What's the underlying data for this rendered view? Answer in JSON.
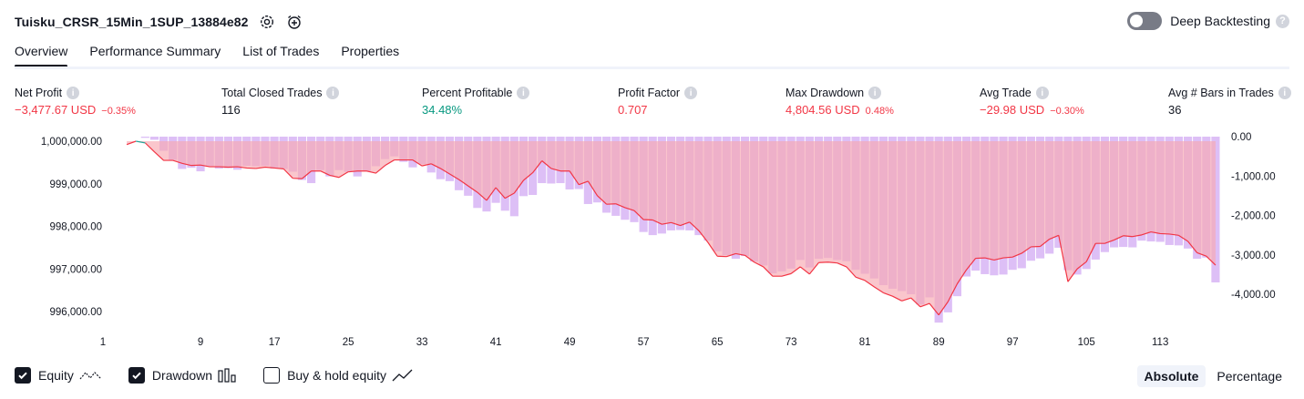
{
  "header": {
    "strategy_name": "Tuisku_CRSR_15Min_1SUP_13884e82",
    "settings_icon": "gear-icon",
    "alert_icon": "add-alarm-icon"
  },
  "deep_backtesting": {
    "label": "Deep Backtesting",
    "enabled": false,
    "help": "?"
  },
  "tabs": [
    {
      "label": "Overview",
      "active": true
    },
    {
      "label": "Performance Summary",
      "active": false
    },
    {
      "label": "List of Trades",
      "active": false
    },
    {
      "label": "Properties",
      "active": false
    }
  ],
  "metrics": {
    "net_profit": {
      "label": "Net Profit",
      "value": "−3,477.67 USD",
      "sub": "−0.35%"
    },
    "total_closed_trades": {
      "label": "Total Closed Trades",
      "value": "116"
    },
    "percent_profitable": {
      "label": "Percent Profitable",
      "value": "34.48%"
    },
    "profit_factor": {
      "label": "Profit Factor",
      "value": "0.707"
    },
    "max_drawdown": {
      "label": "Max Drawdown",
      "value": "4,804.56 USD",
      "sub": "0.48%"
    },
    "avg_trade": {
      "label": "Avg Trade",
      "value": "−29.98 USD",
      "sub": "−0.30%"
    },
    "avg_bars": {
      "label": "Avg # Bars in Trades",
      "value": "36"
    }
  },
  "chart_data": {
    "type": "area",
    "x_ticks": [
      1,
      9,
      17,
      25,
      33,
      41,
      49,
      57,
      65,
      73,
      81,
      89,
      97,
      105,
      113
    ],
    "left_axis": {
      "ticks": [
        "1,000,000.00",
        "999,000.00",
        "998,000.00",
        "997,000.00",
        "996,000.00"
      ],
      "values": [
        1000000,
        999000,
        998000,
        997000,
        996000
      ],
      "range": [
        995400,
        1000100
      ]
    },
    "right_axis": {
      "ticks": [
        "0.00",
        "-1,000.00",
        "-2,000.00",
        "-3,000.00",
        "-4,000.00"
      ],
      "values": [
        0,
        -1000,
        -2000,
        -3000,
        -4000
      ],
      "range": [
        -4800,
        0
      ]
    },
    "colors": {
      "equity_up": "#26a69a",
      "equity_down": "#f23645",
      "equity_fill_down": "#f7a8b1",
      "drawdown": "#d9b8f5"
    },
    "series": [
      {
        "axis": "left",
        "values": [
          999920,
          1000000,
          999960,
          999750,
          999550,
          999550,
          999480,
          999430,
          999440,
          999400,
          999400,
          999390,
          999400,
          999370,
          999360,
          999390,
          999370,
          999350,
          999130,
          999120,
          999300,
          999300,
          999200,
          999150,
          999280,
          999300,
          999300,
          999250,
          999430,
          999560,
          999560,
          999560,
          999420,
          999470,
          999360,
          999230,
          999100,
          998950,
          998800,
          998610,
          998910,
          998660,
          998780,
          999080,
          999260,
          999540,
          999360,
          999300,
          999300,
          998980,
          999060,
          998720,
          998520,
          998530,
          998440,
          998370,
          998160,
          998150,
          998050,
          998090,
          998020,
          998100,
          997900,
          997620,
          997300,
          997290,
          997360,
          997320,
          997160,
          997050,
          996830,
          996830,
          996890,
          997050,
          996880,
          997150,
          997160,
          997140,
          997050,
          996810,
          996730,
          996580,
          996440,
          996360,
          996250,
          996320,
          996110,
          996190,
          995920,
          996230,
          996650,
          996980,
          997250,
          997260,
          997210,
          997260,
          997280,
          997370,
          997520,
          997530,
          997700,
          997790,
          996700,
          997000,
          997170,
          997600,
          997600,
          997680,
          997780,
          997760,
          997800,
          997870,
          997830,
          997820,
          997790,
          997650,
          997380,
          997300,
          997090
        ]
      },
      {
        "axis": "right",
        "values": [
          0,
          0,
          -30,
          -80,
          -360,
          -590,
          -820,
          -790,
          -880,
          -760,
          -810,
          -800,
          -840,
          -740,
          -750,
          -740,
          -810,
          -820,
          -890,
          -1100,
          -1180,
          -850,
          -1010,
          -850,
          -890,
          -1010,
          -880,
          -750,
          -570,
          -500,
          -640,
          -780,
          -700,
          -910,
          -1080,
          -1130,
          -1360,
          -1500,
          -1810,
          -1900,
          -1680,
          -1880,
          -2020,
          -1510,
          -1480,
          -1180,
          -1190,
          -1180,
          -1340,
          -1330,
          -1710,
          -1670,
          -1930,
          -2010,
          -2110,
          -2170,
          -2420,
          -2500,
          -2460,
          -2380,
          -2370,
          -2380,
          -2500,
          -2640,
          -2910,
          -3010,
          -3100,
          -3030,
          -3170,
          -3270,
          -3470,
          -3420,
          -3350,
          -3130,
          -3320,
          -3100,
          -3080,
          -3130,
          -3160,
          -3380,
          -3480,
          -3600,
          -3770,
          -3860,
          -3920,
          -4000,
          -4260,
          -4080,
          -4720,
          -4460,
          -4050,
          -3550,
          -3400,
          -3490,
          -3520,
          -3500,
          -3380,
          -3340,
          -3150,
          -3090,
          -2970,
          -2820,
          -3390,
          -3500,
          -3360,
          -3120,
          -2930,
          -2810,
          -2800,
          -2810,
          -2640,
          -2660,
          -2670,
          -2750,
          -2760,
          -2840,
          -3100,
          -3070,
          -3700
        ]
      }
    ]
  },
  "legend": {
    "equity": {
      "label": "Equity",
      "checked": true,
      "icon": "equity-line-icon"
    },
    "drawdown": {
      "label": "Drawdown",
      "checked": true,
      "icon": "bars-icon"
    },
    "buy_hold": {
      "label": "Buy & hold equity",
      "checked": false,
      "icon": "trend-line-icon"
    }
  },
  "modes": [
    {
      "label": "Absolute",
      "active": true
    },
    {
      "label": "Percentage",
      "active": false
    }
  ]
}
